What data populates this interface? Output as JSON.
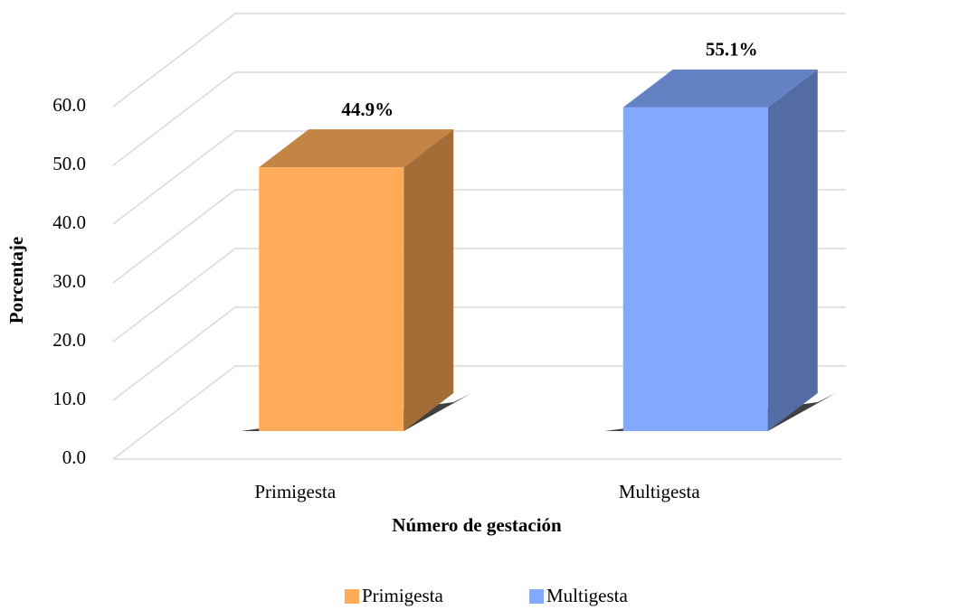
{
  "chart_data": {
    "type": "bar3d",
    "x_label": "Número de gestación",
    "y_label": "Porcentaje",
    "categories": [
      "Primigesta",
      "Multigesta"
    ],
    "values": [
      44.9,
      55.1
    ],
    "value_labels": [
      "44.9%",
      "55.1%"
    ],
    "colors": [
      "#ffab57",
      "#82a8ff"
    ],
    "ylim": [
      0,
      60
    ],
    "yticks": [
      {
        "value": 0,
        "label": "0.0"
      },
      {
        "value": 10,
        "label": "10.0"
      },
      {
        "value": 20,
        "label": "20.0"
      },
      {
        "value": 30,
        "label": "30.0"
      },
      {
        "value": 40,
        "label": "40.0"
      },
      {
        "value": 50,
        "label": "50.0"
      },
      {
        "value": 60,
        "label": "60.0"
      }
    ],
    "grid": true,
    "legend": "bottom"
  }
}
